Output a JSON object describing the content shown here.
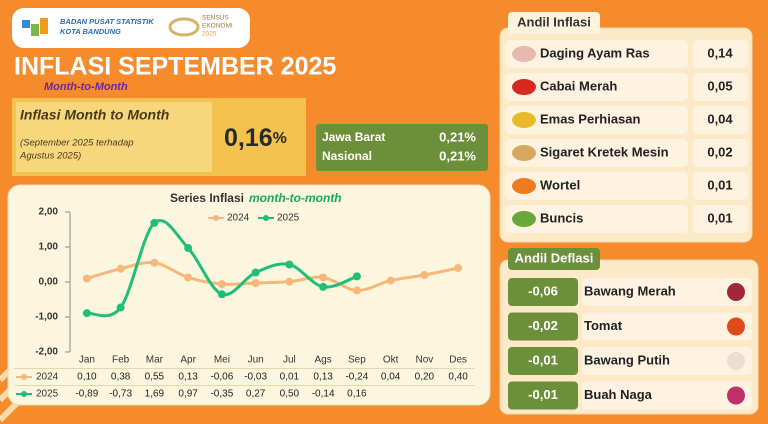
{
  "header": {
    "org_line1": "BADAN PUSAT STATISTIK",
    "org_line2": "KOTA BANDUNG",
    "census_line1": "SENSUS",
    "census_line2": "EKONOMI",
    "census_line3": "2025"
  },
  "title": "INFLASI SEPTEMBER 2025",
  "subtitle": "Month-to-Month",
  "mtm": {
    "label": "Inflasi Month to Month",
    "note_line1": "(September 2025 terhadap",
    "note_line2": "Agustus 2025)",
    "value": "0,16",
    "unit": "%"
  },
  "regions": [
    {
      "name": "Jawa Barat",
      "value": "0,21%"
    },
    {
      "name": "Nasional",
      "value": "0,21%"
    }
  ],
  "andil_inflasi": {
    "title": "Andil Inflasi",
    "items": [
      {
        "name": "Daging Ayam Ras",
        "value": "0,14"
      },
      {
        "name": "Cabai Merah",
        "value": "0,05"
      },
      {
        "name": "Emas Perhiasan",
        "value": "0,04"
      },
      {
        "name": "Sigaret Kretek Mesin",
        "value": "0,02"
      },
      {
        "name": "Wortel",
        "value": "0,01"
      },
      {
        "name": "Buncis",
        "value": "0,01"
      }
    ]
  },
  "andil_deflasi": {
    "title": "Andil Deflasi",
    "items": [
      {
        "name": "Bawang Merah",
        "value": "-0,06"
      },
      {
        "name": "Tomat",
        "value": "-0,02"
      },
      {
        "name": "Bawang Putih",
        "value": "-0,01"
      },
      {
        "name": "Buah Naga",
        "value": "-0,01"
      }
    ]
  },
  "chart_data": {
    "type": "line",
    "title": "Series Inflasi",
    "title_emphasis": "month-to-month",
    "categories": [
      "Jan",
      "Feb",
      "Mar",
      "Apr",
      "Mei",
      "Jun",
      "Jul",
      "Ags",
      "Sep",
      "Okt",
      "Nov",
      "Des"
    ],
    "series": [
      {
        "name": "2024",
        "color": "#f7b77a",
        "values": [
          0.1,
          0.38,
          0.55,
          0.13,
          -0.06,
          -0.03,
          0.01,
          0.13,
          -0.24,
          0.04,
          0.2,
          0.4
        ],
        "value_labels": [
          "0,10",
          "0,38",
          "0,55",
          "0,13",
          "-0,06",
          "-0,03",
          "0,01",
          "0,13",
          "-0,24",
          "0,04",
          "0,20",
          "0,40"
        ]
      },
      {
        "name": "2025",
        "color": "#1fbf78",
        "values": [
          -0.89,
          -0.73,
          1.69,
          0.97,
          -0.35,
          0.27,
          0.5,
          -0.14,
          0.16,
          null,
          null,
          null
        ],
        "value_labels": [
          "-0,89",
          "-0,73",
          "1,69",
          "0,97",
          "-0,35",
          "0,27",
          "0,50",
          "-0,14",
          "0,16",
          null,
          null,
          null
        ]
      }
    ],
    "ylim": [
      -2,
      2
    ],
    "yticks": [
      {
        "value": 2,
        "label": "2,00"
      },
      {
        "value": 1,
        "label": "1,00"
      },
      {
        "value": 0,
        "label": "0,00"
      },
      {
        "value": -1,
        "label": "-1,00"
      },
      {
        "value": -2,
        "label": "-2,00"
      }
    ],
    "grid": false
  }
}
